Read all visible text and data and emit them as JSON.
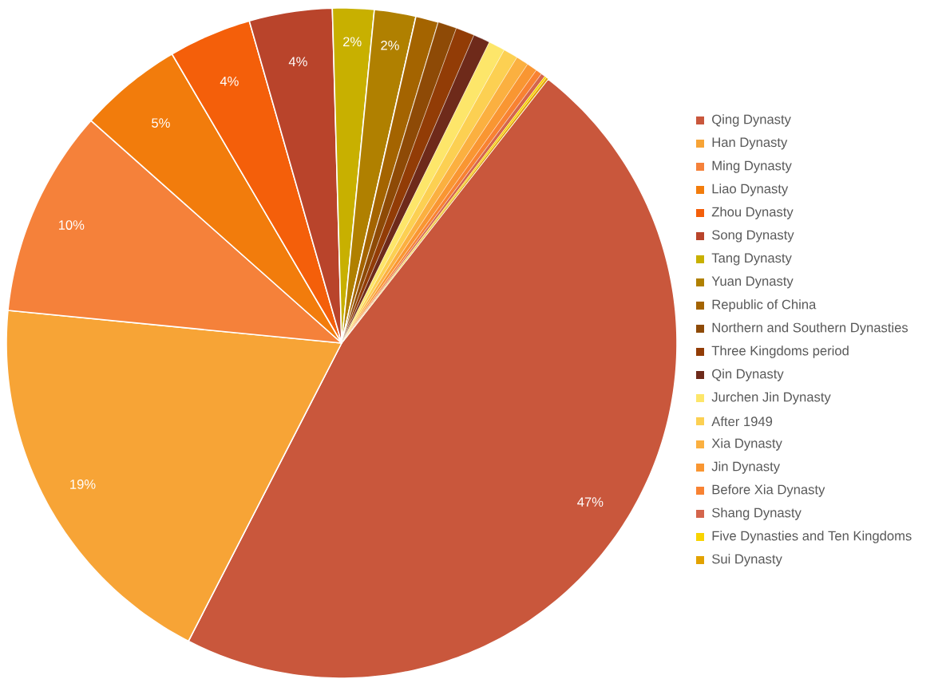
{
  "chart_data": {
    "type": "pie",
    "categories": [
      "Qing Dynasty",
      "Han Dynasty",
      "Ming Dynasty",
      "Liao Dynasty",
      "Zhou Dynasty",
      "Song Dynasty",
      "Tang Dynasty",
      "Yuan Dynasty",
      "Republic of China",
      "Northern and Southern Dynasties",
      "Three Kingdoms period",
      "Qin Dynasty",
      "Jurchen Jin Dynasty",
      "After 1949",
      "Xia Dynasty",
      "Jin Dynasty",
      "Before Xia Dynasty",
      "Shang Dynasty",
      "Five Dynasties and Ten Kingdoms",
      "Sui Dynasty"
    ],
    "values": [
      47,
      19,
      10,
      5,
      4,
      4,
      2,
      2,
      1.1,
      0.9,
      0.9,
      0.8,
      0.8,
      0.7,
      0.6,
      0.5,
      0.3,
      0.2,
      0.1,
      0.1
    ],
    "value_labels": [
      "47%",
      "19%",
      "10%",
      "5%",
      "4%",
      "4%",
      "2%",
      "2%",
      null,
      null,
      null,
      null,
      null,
      null,
      null,
      null,
      null,
      null,
      null,
      null
    ],
    "colors": [
      "#c9573c",
      "#f7a436",
      "#f5813a",
      "#f27c0c",
      "#f45f0a",
      "#b9442b",
      "#c8b000",
      "#b08000",
      "#a46400",
      "#8e4a06",
      "#923c06",
      "#6e2a1a",
      "#fde66a",
      "#fcd052",
      "#fbb040",
      "#f99632",
      "#f88232",
      "#d4654c",
      "#f8d400",
      "#e2a200"
    ],
    "legend": "right"
  }
}
